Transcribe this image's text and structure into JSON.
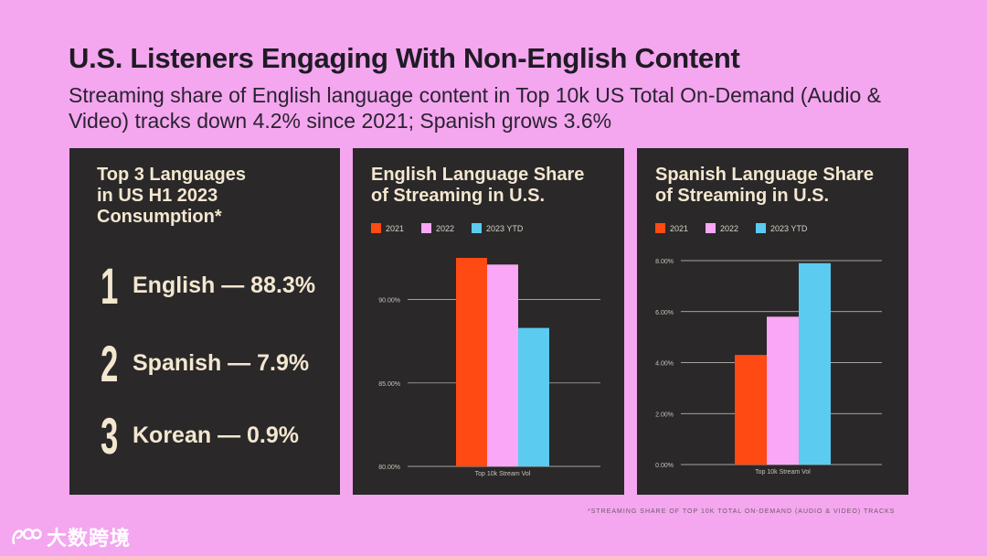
{
  "title": "U.S. Listeners Engaging With Non-English Content",
  "subtitle": "Streaming share of English language content in Top 10k US Total On-Demand (Audio & Video) tracks down 4.2% since 2021; Spanish grows 3.6%",
  "top3": {
    "title_lines": [
      "Top 3 Languages",
      "in US H1 2023",
      "Consumption*"
    ],
    "items": [
      {
        "rank": "1",
        "text": "English — 88.3%"
      },
      {
        "rank": "2",
        "text": "Spanish — 7.9%"
      },
      {
        "rank": "3",
        "text": "Korean — 0.9%"
      }
    ]
  },
  "colors": {
    "y2021": "#ff4a13",
    "y2022": "#f9a7f6",
    "y2023": "#5bcbef"
  },
  "chart_data": [
    {
      "type": "bar",
      "title_lines": [
        "English Language Share",
        "of Streaming in U.S."
      ],
      "categories": [
        "Top 10k Stream Vol"
      ],
      "series": [
        {
          "name": "2021",
          "values": [
            92.5
          ]
        },
        {
          "name": "2022",
          "values": [
            92.1
          ]
        },
        {
          "name": "2023 YTD",
          "values": [
            88.3
          ]
        }
      ],
      "ylim": [
        80,
        92.5
      ],
      "yticks": [
        80,
        85,
        90
      ],
      "ytick_labels": [
        "80.00%",
        "85.00%",
        "90.00%"
      ],
      "grid": true,
      "legend": "top-left"
    },
    {
      "type": "bar",
      "title_lines": [
        "Spanish Language Share",
        "of Streaming in U.S."
      ],
      "categories": [
        "Top 10k Stream Vol"
      ],
      "series": [
        {
          "name": "2021",
          "values": [
            4.3
          ]
        },
        {
          "name": "2022",
          "values": [
            5.8
          ]
        },
        {
          "name": "2023 YTD",
          "values": [
            7.9
          ]
        }
      ],
      "ylim": [
        0,
        8
      ],
      "yticks": [
        0,
        2,
        4,
        6,
        8
      ],
      "ytick_labels": [
        "0.00%",
        "2.00%",
        "4.00%",
        "6.00%",
        "8.00%"
      ],
      "grid": true,
      "legend": "top-left"
    }
  ],
  "footnote": "*STREAMING SHARE OF TOP 10K TOTAL ON-DEMAND (AUDIO & VIDEO) TRACKS",
  "watermark": {
    "text": "大数跨境"
  }
}
